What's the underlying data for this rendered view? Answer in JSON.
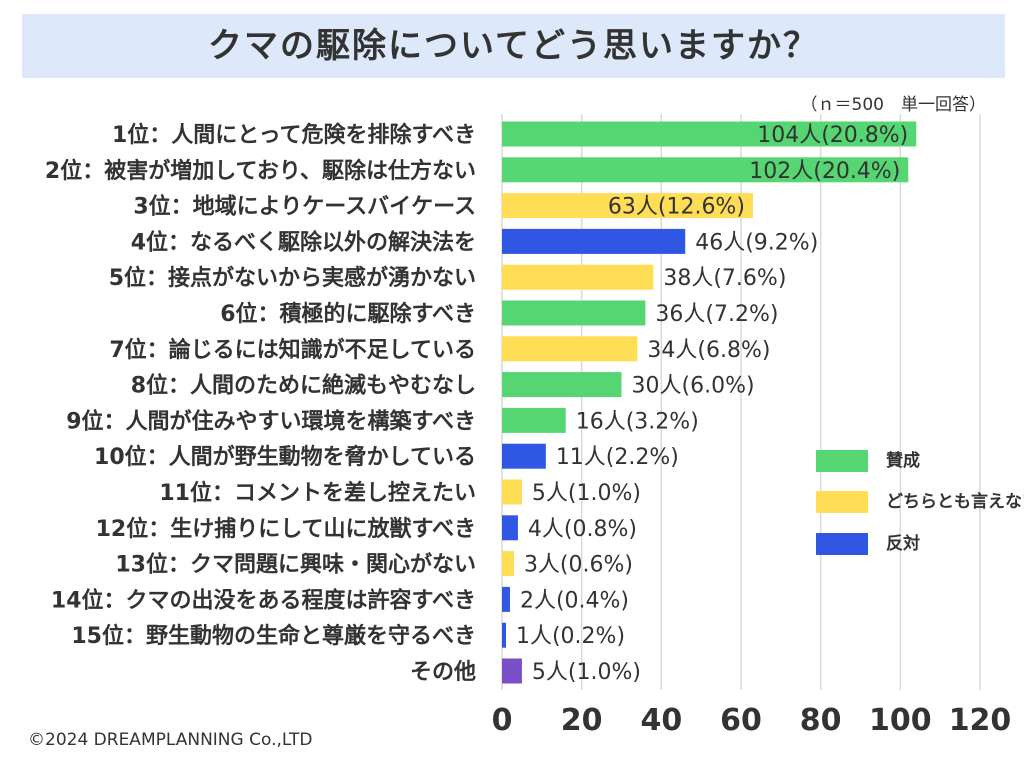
{
  "title": "クマの駆除についてどう思いますか？",
  "note": "（ｎ＝500　単一回答）",
  "copyright": "©2024 DREAMPLANNING Co.,LTD",
  "colors": {
    "agree": "#55d673",
    "neutral": "#ffdd55",
    "disagree": "#2f57e4",
    "other": "#7a4fc9",
    "title_bg": "#dde9fa",
    "grid": "#d9d9d9"
  },
  "legend": [
    {
      "key": "agree",
      "label": "賛成"
    },
    {
      "key": "neutral",
      "label": "どちらとも言えない"
    },
    {
      "key": "disagree",
      "label": "反対"
    }
  ],
  "chart_data": {
    "type": "bar",
    "orientation": "horizontal",
    "title": "クマの駆除についてどう思いますか？",
    "xlim": [
      0,
      120
    ],
    "xticks": [
      0,
      20,
      40,
      60,
      80,
      100,
      120
    ],
    "grid": true,
    "legend_position": "right",
    "categories": [
      "1位：人間にとって危険を排除すべき",
      "2位：被害が増加しており、駆除は仕方ない",
      "3位：地域によりケースバイケース",
      "4位：なるべく駆除以外の解決法を",
      "5位：接点がないから実感が湧かない",
      "6位：積極的に駆除すべき",
      "7位：論じるには知識が不足している",
      "8位：人間のために絶滅もやむなし",
      "9位：人間が住みやすい環境を構築すべき",
      "10位：人間が野生動物を脅かしている",
      "11位：コメントを差し控えたい",
      "12位：生け捕りにして山に放獣すべき",
      "13位：クマ問題に興味・関心がない",
      "14位：クマの出没をある程度は許容すべき",
      "15位：野生動物の生命と尊厳を守るべき",
      "その他"
    ],
    "values": [
      104,
      102,
      63,
      46,
      38,
      36,
      34,
      30,
      16,
      11,
      5,
      4,
      3,
      2,
      1,
      5
    ],
    "groups": [
      "agree",
      "agree",
      "neutral",
      "disagree",
      "neutral",
      "agree",
      "neutral",
      "agree",
      "agree",
      "disagree",
      "neutral",
      "disagree",
      "neutral",
      "disagree",
      "disagree",
      "other"
    ],
    "labels": [
      "104人(20.8%)",
      "102人(20.4%)",
      "63人(12.6%)",
      "46人(9.2%)",
      "38人(7.6%)",
      "36人(7.2%)",
      "34人(6.8%)",
      "30人(6.0%)",
      "16人(3.2%)",
      "11人(2.2%)",
      "5人(1.0%)",
      "4人(0.8%)",
      "3人(0.6%)",
      "2人(0.4%)",
      "1人(0.2%)",
      "5人(1.0%)"
    ]
  }
}
